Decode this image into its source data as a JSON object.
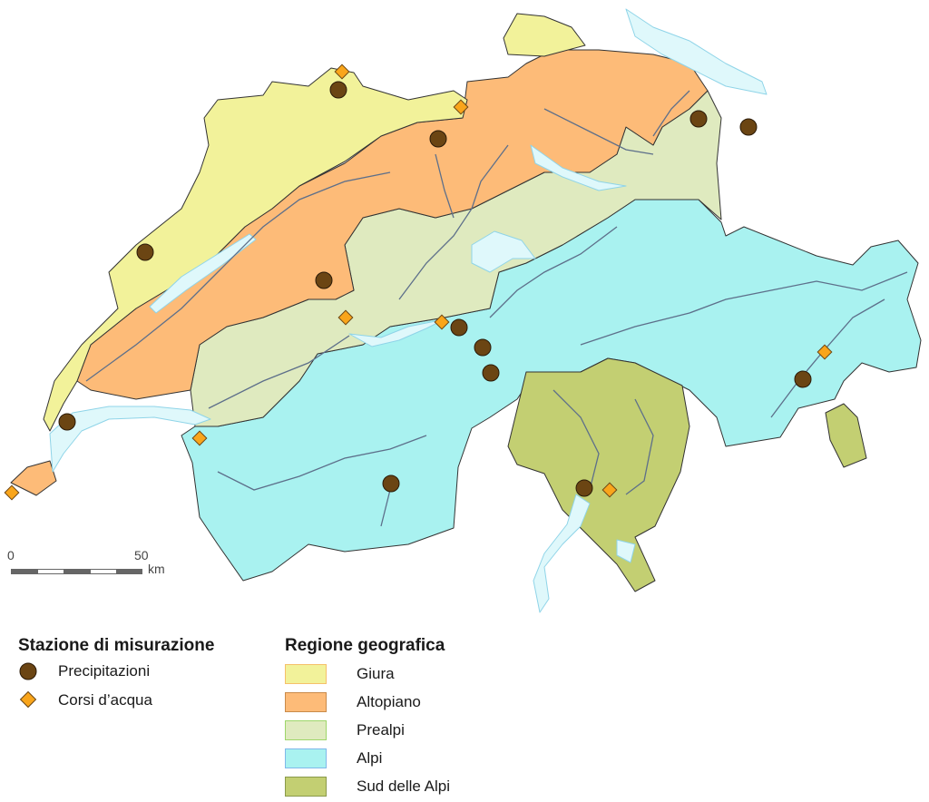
{
  "map": {
    "colors": {
      "giura": "#f2f29a",
      "altopiano": "#fdbb78",
      "prealpi": "#dfeabf",
      "alpi": "#a9f2f0",
      "sud_delle_alpi": "#c3cf72",
      "lakes": "#dff8fb",
      "rivers": "#5d6f8a",
      "border": "#333333",
      "precipitation_station": "#6b4513",
      "watercourse_station": "#f9a51b"
    }
  },
  "scale_bar": {
    "start": "0",
    "end": "50",
    "unit": "km"
  },
  "legend": {
    "stations": {
      "title": "Stazione di misurazione",
      "items": [
        {
          "label": "Precipitazioni",
          "icon": "brown-circle-icon"
        },
        {
          "label": "Corsi d’acqua",
          "icon": "orange-diamond-icon"
        }
      ]
    },
    "regions": {
      "title": "Regione geografica",
      "items": [
        {
          "label": "Giura",
          "color": "#f2f29a",
          "stroke": "#f5c06a"
        },
        {
          "label": "Altopiano",
          "color": "#fdbb78",
          "stroke": "#c98a4a"
        },
        {
          "label": "Prealpi",
          "color": "#dfeabf",
          "stroke": "#9ed66a"
        },
        {
          "label": "Alpi",
          "color": "#a9f2f0",
          "stroke": "#7fb8ea"
        },
        {
          "label": "Sud delle Alpi",
          "color": "#c3cf72",
          "stroke": "#8a9a4a"
        }
      ]
    }
  }
}
